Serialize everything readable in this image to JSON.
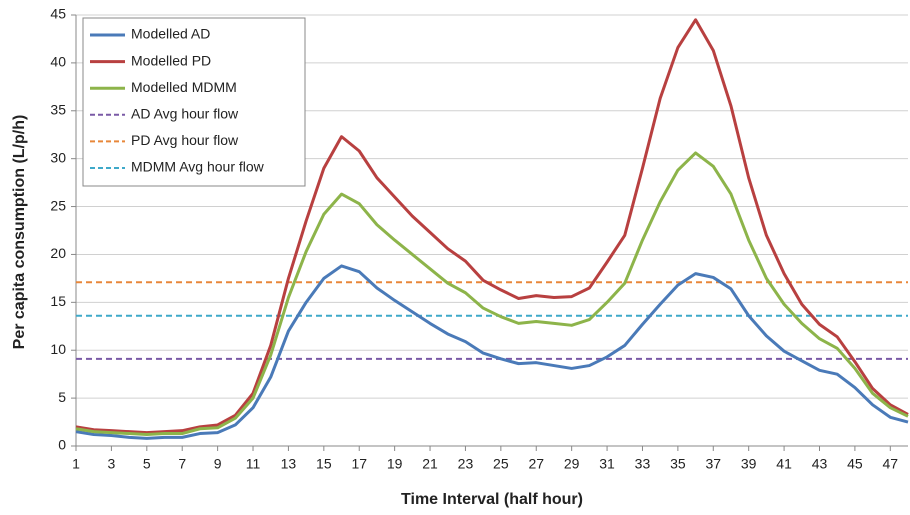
{
  "chart_data": {
    "type": "line",
    "x_label": "Time Interval (half hour)",
    "y_label": "Per capita consumption (L/p/h)",
    "x": [
      1,
      2,
      3,
      4,
      5,
      6,
      7,
      8,
      9,
      10,
      11,
      12,
      13,
      14,
      15,
      16,
      17,
      18,
      19,
      20,
      21,
      22,
      23,
      24,
      25,
      26,
      27,
      28,
      29,
      30,
      31,
      32,
      33,
      34,
      35,
      36,
      37,
      38,
      39,
      40,
      41,
      42,
      43,
      44,
      45,
      46,
      47,
      48
    ],
    "series": [
      {
        "name": "Modelled AD",
        "color": "#4a7ab8",
        "values": [
          1.5,
          1.2,
          1.1,
          0.9,
          0.8,
          0.9,
          0.9,
          1.3,
          1.4,
          2.2,
          4.0,
          7.2,
          12.0,
          15.0,
          17.5,
          18.8,
          18.2,
          16.5,
          15.2,
          14.0,
          12.8,
          11.7,
          10.9,
          9.7,
          9.1,
          8.6,
          8.7,
          8.4,
          8.1,
          8.4,
          9.3,
          10.5,
          12.7,
          14.8,
          16.8,
          18.0,
          17.6,
          16.4,
          13.6,
          11.5,
          9.9,
          8.9,
          7.9,
          7.5,
          6.1,
          4.3,
          3.0,
          2.5
        ]
      },
      {
        "name": "Modelled PD",
        "color": "#b84040",
        "values": [
          2.0,
          1.7,
          1.6,
          1.5,
          1.4,
          1.5,
          1.6,
          2.0,
          2.2,
          3.2,
          5.5,
          10.5,
          17.5,
          23.5,
          29.0,
          32.3,
          30.8,
          28.0,
          26.0,
          24.0,
          22.3,
          20.6,
          19.3,
          17.3,
          16.3,
          15.4,
          15.7,
          15.5,
          15.6,
          16.5,
          19.2,
          22.0,
          29.0,
          36.3,
          41.6,
          44.5,
          41.3,
          35.5,
          28.0,
          22.0,
          18.0,
          14.8,
          12.7,
          11.4,
          8.8,
          6.0,
          4.3,
          3.3
        ]
      },
      {
        "name": "Modelled MDMM",
        "color": "#8db44a",
        "values": [
          1.8,
          1.5,
          1.4,
          1.3,
          1.2,
          1.3,
          1.3,
          1.8,
          1.9,
          2.9,
          5.0,
          9.5,
          15.5,
          20.3,
          24.2,
          26.3,
          25.3,
          23.1,
          21.5,
          20.0,
          18.5,
          17.0,
          16.0,
          14.4,
          13.5,
          12.8,
          13.0,
          12.8,
          12.6,
          13.2,
          15.0,
          17.0,
          21.5,
          25.5,
          28.8,
          30.6,
          29.2,
          26.3,
          21.5,
          17.5,
          14.8,
          12.8,
          11.2,
          10.2,
          8.1,
          5.5,
          4.0,
          3.1
        ]
      }
    ],
    "reference_lines": [
      {
        "name": "AD Avg hour flow",
        "color": "#7a5aa6",
        "value": 9.1
      },
      {
        "name": "PD Avg hour flow",
        "color": "#e8873a",
        "value": 17.1
      },
      {
        "name": "MDMM Avg hour flow",
        "color": "#3fa9c9",
        "value": 13.6
      }
    ],
    "xlim": [
      1,
      48
    ],
    "xticks": [
      1,
      3,
      5,
      7,
      9,
      11,
      13,
      15,
      17,
      19,
      21,
      23,
      25,
      27,
      29,
      31,
      33,
      35,
      37,
      39,
      41,
      43,
      45,
      47
    ],
    "ylim": [
      0,
      45
    ],
    "yticks": [
      0,
      5,
      10,
      15,
      20,
      25,
      30,
      35,
      40,
      45
    ],
    "grid": true,
    "legend": "upper left"
  }
}
